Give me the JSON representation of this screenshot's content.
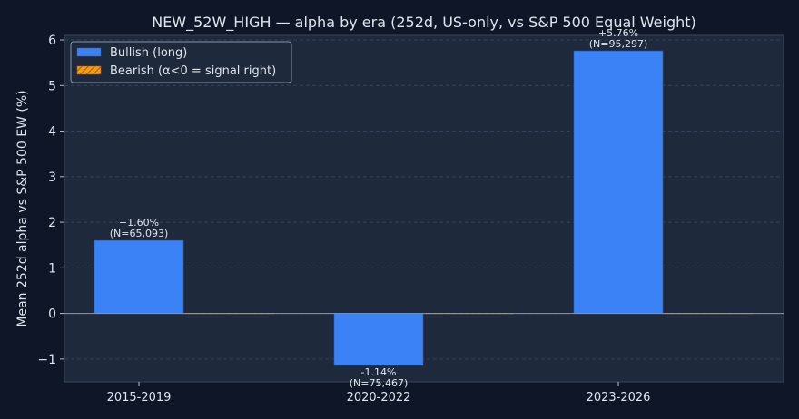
{
  "chart_data": {
    "type": "bar",
    "title": "NEW_52W_HIGH — alpha by era (252d, US-only, vs S&P 500 Equal Weight)",
    "xlabel": "",
    "ylabel": "Mean 252d alpha vs S&P 500 EW (%)",
    "categories": [
      "2015-2019",
      "2020-2022",
      "2023-2026"
    ],
    "series": [
      {
        "name": "Bullish (long)",
        "color": "#3b82f6",
        "values": [
          1.6,
          -1.14,
          5.76
        ],
        "labels": [
          "+1.60%",
          "-1.14%",
          "+5.76%"
        ],
        "counts": [
          "(N=65,093)",
          "(N=75,467)",
          "(N=95,297)"
        ]
      },
      {
        "name": "Bearish (α<0 = signal right)",
        "color": "#f59e0b",
        "pattern": "hatched",
        "values": [
          0,
          0,
          0
        ]
      }
    ],
    "ylim": [
      -1.5,
      6.1
    ],
    "yticks": [
      -1,
      0,
      1,
      2,
      3,
      4,
      5,
      6
    ],
    "ytick_labels": [
      "−1",
      "0",
      "1",
      "2",
      "3",
      "4",
      "5",
      "6"
    ],
    "grid": true,
    "legend": "top-left"
  }
}
